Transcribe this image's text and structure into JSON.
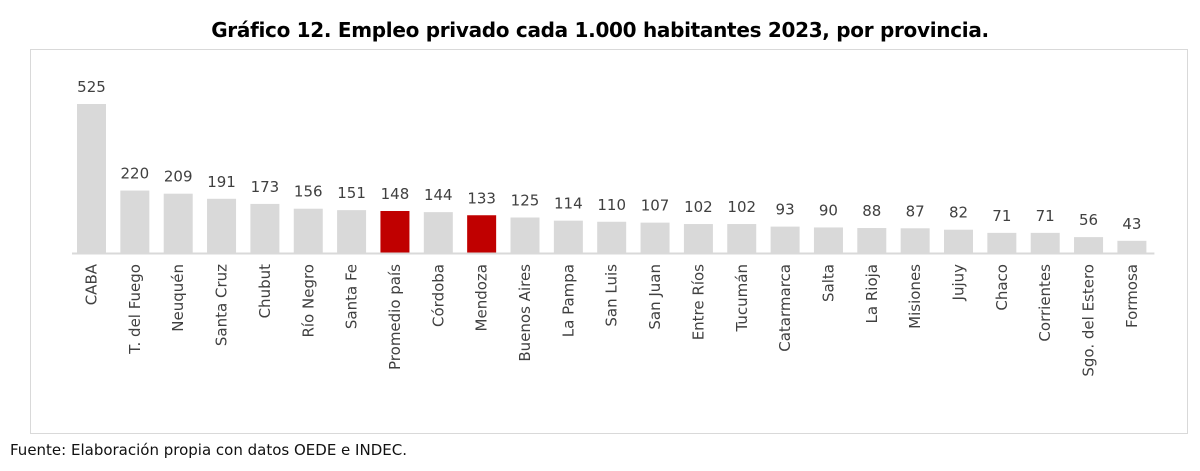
{
  "chart_data": {
    "type": "bar",
    "title": "Gráfico 12. Empleo privado cada 1.000 habitantes 2023, por provincia.",
    "xlabel": "",
    "ylabel": "",
    "ylim": [
      0,
      525
    ],
    "grid": false,
    "legend": "none",
    "source": "Fuente: Elaboración propia con datos OEDE e INDEC.",
    "categories": [
      "CABA",
      "T. del Fuego",
      "Neuquén",
      "Santa Cruz",
      "Chubut",
      "Río Negro",
      "Santa Fe",
      "Promedio país",
      "Córdoba",
      "Mendoza",
      "Buenos Aires",
      "La Pampa",
      "San Luis",
      "San Juan",
      "Entre Ríos",
      "Tucumán",
      "Catarmarca",
      "Salta",
      "La Rioja",
      "Misiones",
      "Jujuy",
      "Chaco",
      "Corrientes",
      "Sgo. del Estero",
      "Formosa"
    ],
    "values": [
      525,
      220,
      209,
      191,
      173,
      156,
      151,
      148,
      144,
      133,
      125,
      114,
      110,
      107,
      102,
      102,
      93,
      90,
      88,
      87,
      82,
      71,
      71,
      56,
      43
    ],
    "highlighted": [
      "Promedio país",
      "Mendoza"
    ],
    "colors": {
      "default": "#d9d9d9",
      "highlight": "#c00000",
      "axis": "#d9d9d9",
      "label": "#404040"
    }
  }
}
